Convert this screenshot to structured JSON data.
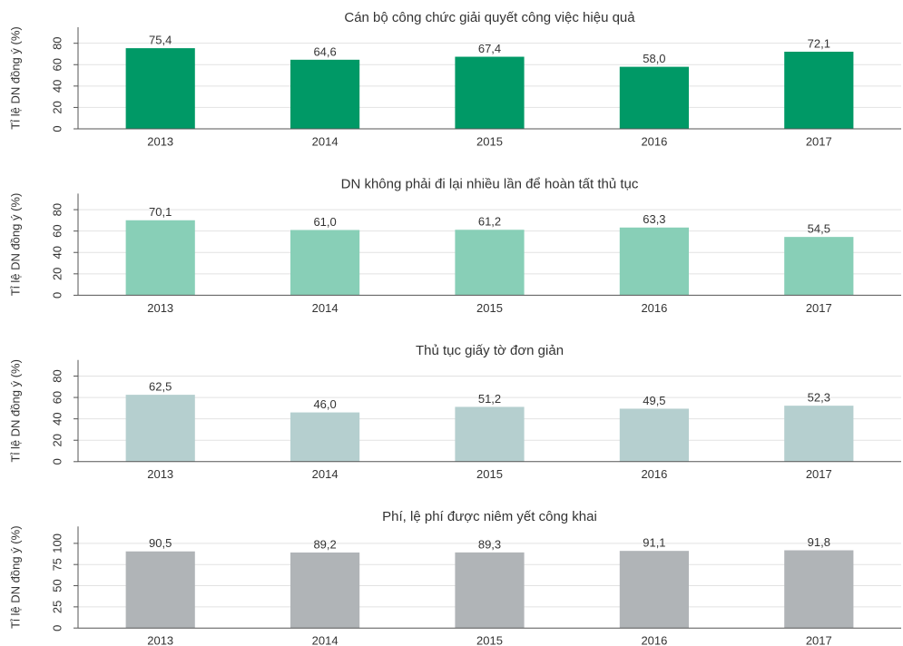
{
  "chart_data": [
    {
      "type": "bar",
      "title": "Cán bộ công chức giải quyết công việc hiệu quả",
      "y_label": "Tỉ lệ DN đồng ý (%)",
      "categories": [
        "2013",
        "2014",
        "2015",
        "2016",
        "2017"
      ],
      "values": [
        75.4,
        64.6,
        67.4,
        58.0,
        72.1
      ],
      "value_labels": [
        "75,4",
        "64,6",
        "67,4",
        "58,0",
        "72,1"
      ],
      "color": "#009966",
      "ylim": [
        0,
        95
      ],
      "yticks": [
        0,
        20,
        40,
        60,
        80
      ],
      "grid": true
    },
    {
      "type": "bar",
      "title": "DN không phải đi lại nhiều lần để hoàn tất thủ tục",
      "y_label": "Tỉ lệ DN đồng ý (%)",
      "categories": [
        "2013",
        "2014",
        "2015",
        "2016",
        "2017"
      ],
      "values": [
        70.1,
        61.0,
        61.2,
        63.3,
        54.5
      ],
      "value_labels": [
        "70,1",
        "61,0",
        "61,2",
        "63,3",
        "54,5"
      ],
      "color": "#88cfb7",
      "ylim": [
        0,
        95
      ],
      "yticks": [
        0,
        20,
        40,
        60,
        80
      ],
      "grid": true
    },
    {
      "type": "bar",
      "title": "Thủ tục giấy tờ đơn giản",
      "y_label": "Tỉ lệ DN đồng ý (%)",
      "categories": [
        "2013",
        "2014",
        "2015",
        "2016",
        "2017"
      ],
      "values": [
        62.5,
        46.0,
        51.2,
        49.5,
        52.3
      ],
      "value_labels": [
        "62,5",
        "46,0",
        "51,2",
        "49,5",
        "52,3"
      ],
      "color": "#b5cfcf",
      "ylim": [
        0,
        95
      ],
      "yticks": [
        0,
        20,
        40,
        60,
        80
      ],
      "grid": true
    },
    {
      "type": "bar",
      "title": "Phí, lệ phí được niêm yết công khai",
      "y_label": "Tỉ lệ DN đồng ý (%)",
      "categories": [
        "2013",
        "2014",
        "2015",
        "2016",
        "2017"
      ],
      "values": [
        90.5,
        89.2,
        89.3,
        91.1,
        91.8
      ],
      "value_labels": [
        "90,5",
        "89,2",
        "89,3",
        "91,1",
        "91,8"
      ],
      "color": "#b0b4b7",
      "ylim": [
        0,
        120
      ],
      "yticks": [
        0,
        25,
        50,
        75,
        100
      ],
      "grid": true
    }
  ]
}
